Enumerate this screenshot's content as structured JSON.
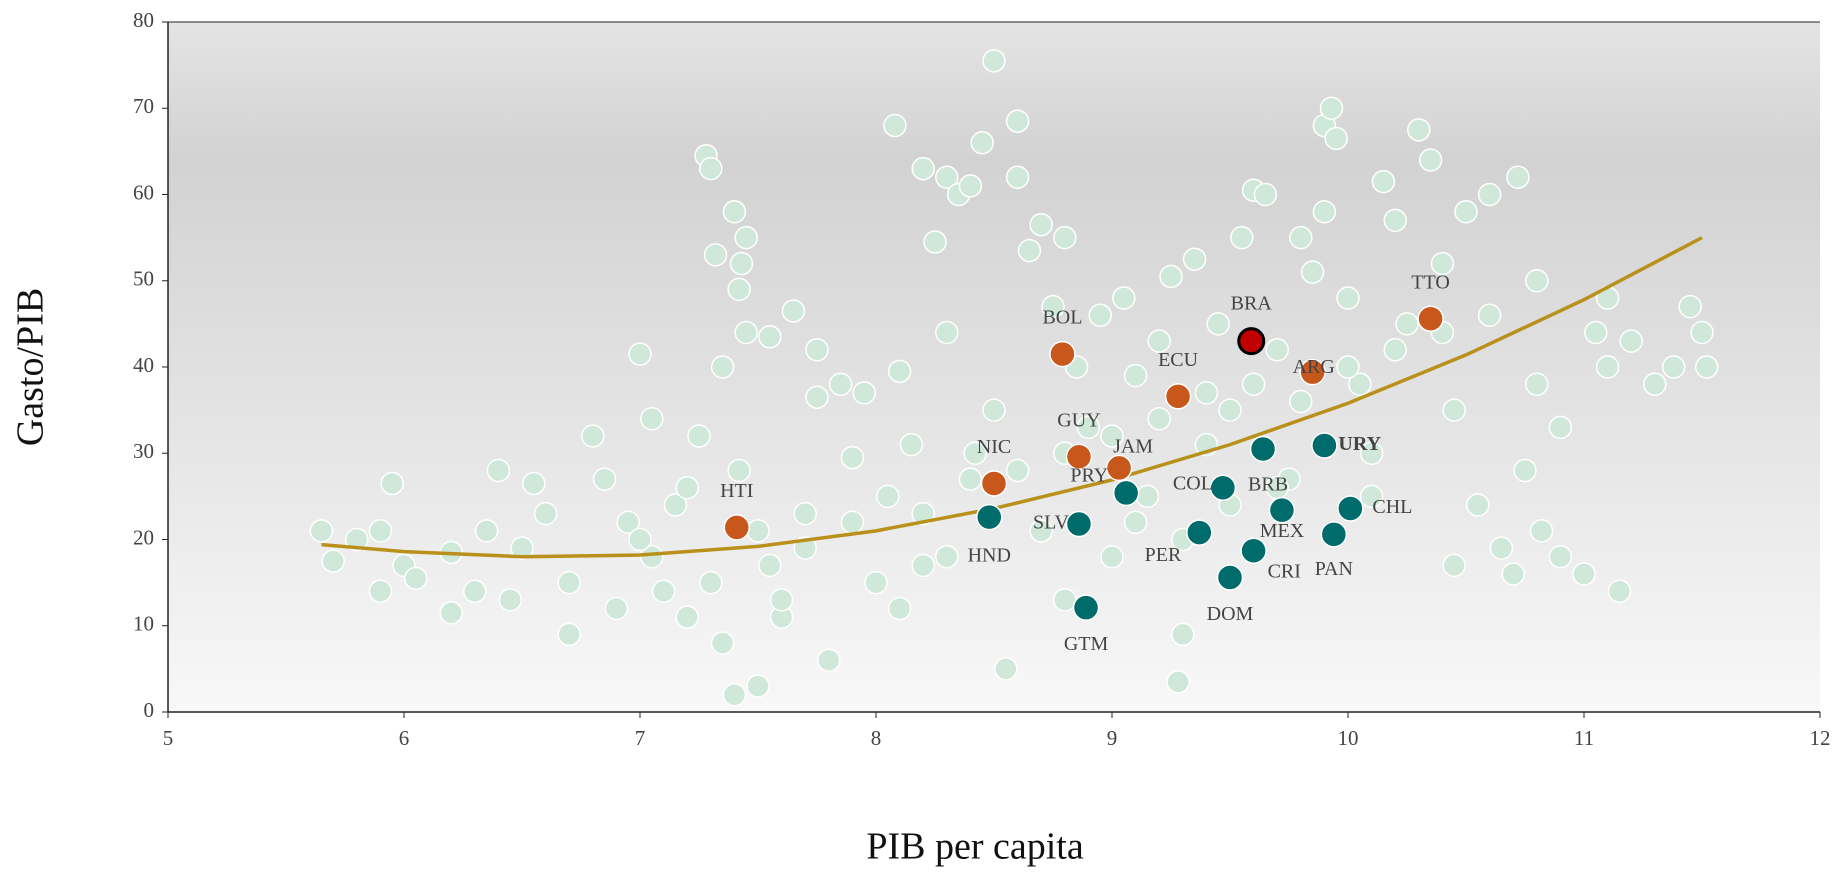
{
  "chart_data": {
    "type": "scatter",
    "xlabel": "PIB per capita",
    "ylabel": "Gasto/PIB",
    "xlim": [
      5,
      12
    ],
    "xticks": [
      5,
      6,
      7,
      8,
      9,
      10,
      11,
      12
    ],
    "ylim": [
      0,
      80
    ],
    "yticks": [
      0,
      10,
      20,
      30,
      40,
      50,
      60,
      70,
      80
    ],
    "background": {
      "color": "#cfe8da",
      "x": [
        5.65,
        5.7,
        5.8,
        5.9,
        5.95,
        5.9,
        6.0,
        6.05,
        6.2,
        6.2,
        6.3,
        6.35,
        6.4,
        6.45,
        6.5,
        6.55,
        6.6,
        6.7,
        6.7,
        6.8,
        6.85,
        6.9,
        6.95,
        7.0,
        7.05,
        7.05,
        7.1,
        7.15,
        7.2,
        7.25,
        7.28,
        7.3,
        7.32,
        7.35,
        7.35,
        7.4,
        7.42,
        7.4,
        7.42,
        7.43,
        7.45,
        7.45,
        7.5,
        7.55,
        7.55,
        7.6,
        7.65,
        7.7,
        7.75,
        7.75,
        7.8,
        7.85,
        7.9,
        7.95,
        8.0,
        8.05,
        8.08,
        8.1,
        8.15,
        8.2,
        8.2,
        8.25,
        8.3,
        8.3,
        8.35,
        8.4,
        8.42,
        8.45,
        8.5,
        8.5,
        8.55,
        8.6,
        8.6,
        8.65,
        8.7,
        8.75,
        8.8,
        8.8,
        8.85,
        8.9,
        8.95,
        9.0,
        9.05,
        9.1,
        9.15,
        9.2,
        9.25,
        9.28,
        9.3,
        9.35,
        9.4,
        9.45,
        9.5,
        9.55,
        9.6,
        9.65,
        9.7,
        9.75,
        9.8,
        9.85,
        9.9,
        9.93,
        9.95,
        9.9,
        10.0,
        10.05,
        10.1,
        10.15,
        10.2,
        10.25,
        10.3,
        10.35,
        10.4,
        10.45,
        10.45,
        10.5,
        10.55,
        10.6,
        10.65,
        10.7,
        10.72,
        10.75,
        10.8,
        10.82,
        10.9,
        10.9,
        11.0,
        11.05,
        11.1,
        11.15,
        11.1,
        11.2,
        11.3,
        11.38,
        11.45,
        11.5,
        11.52,
        7.0,
        7.2,
        7.5,
        7.7,
        7.9,
        8.2,
        8.4,
        8.6,
        8.8,
        9.0,
        9.2,
        9.4,
        9.6,
        9.8,
        10.0,
        10.2,
        10.4,
        10.6,
        10.8,
        7.3,
        7.6,
        8.1,
        8.3,
        8.7,
        9.1,
        9.3,
        9.5,
        9.7,
        10.1
      ],
      "values": [
        21,
        17.5,
        20,
        14,
        26.5,
        21,
        17,
        15.5,
        18.5,
        11.5,
        14,
        21,
        28,
        13,
        19,
        26.5,
        23,
        9,
        15,
        32,
        27,
        12,
        22,
        41.5,
        34,
        18,
        14,
        24,
        11,
        32,
        64.5,
        63,
        53,
        40,
        8,
        2,
        28,
        58,
        49,
        52,
        55,
        44,
        3,
        17,
        43.5,
        11,
        46.5,
        23,
        42,
        36.5,
        6,
        38,
        29.5,
        37,
        15,
        25,
        68,
        39.5,
        31,
        63,
        17,
        54.5,
        62,
        44,
        60,
        61,
        30,
        66,
        75.5,
        35,
        5,
        62,
        68.5,
        53.5,
        56.5,
        47,
        55,
        13,
        40,
        33,
        46,
        18,
        48,
        39,
        25,
        43,
        50.5,
        3.5,
        9,
        52.5,
        31,
        45,
        35,
        55,
        60.5,
        60,
        42,
        27,
        55,
        51,
        68,
        70,
        66.5,
        58,
        48,
        38,
        30,
        61.5,
        57,
        45,
        67.5,
        64,
        52,
        17,
        35,
        58,
        24,
        60,
        19,
        16,
        62,
        28,
        50,
        21,
        18,
        33,
        16,
        44,
        40,
        14,
        48,
        43,
        38,
        40,
        47,
        44,
        40,
        20,
        26,
        21,
        19,
        22,
        23,
        27,
        28,
        30,
        32,
        34,
        37,
        38,
        36,
        40,
        42,
        44,
        46,
        38,
        15,
        13,
        12,
        18,
        21,
        22,
        20,
        24,
        26,
        25
      ]
    },
    "highlights": [
      {
        "color": "#c8571b",
        "labels": [
          "HTI",
          "NIC",
          "BOL",
          "GUY",
          "JAM",
          "ECU",
          "ARG",
          "TTO"
        ],
        "x": [
          7.41,
          8.5,
          8.79,
          8.86,
          9.03,
          9.28,
          9.85,
          10.35
        ],
        "values": [
          21.4,
          26.5,
          41.5,
          29.6,
          28.3,
          36.6,
          39.4,
          45.6
        ]
      },
      {
        "color": "#006b6b",
        "labels": [
          "HND",
          "SLV",
          "PRY",
          "GTM",
          "COL",
          "PER",
          "DOM",
          "CRI",
          "MEX",
          "BRB",
          "URY",
          "CHL",
          "PAN"
        ],
        "x": [
          8.48,
          8.86,
          9.06,
          8.89,
          9.47,
          9.37,
          9.5,
          9.6,
          9.72,
          9.64,
          9.9,
          10.01,
          9.94
        ],
        "values": [
          22.6,
          21.8,
          25.4,
          12.1,
          26.0,
          20.8,
          15.6,
          18.7,
          23.4,
          30.5,
          30.9,
          23.6,
          20.6
        ]
      },
      {
        "color": "#c00000",
        "labels": [
          "BRA"
        ],
        "x": [
          9.59
        ],
        "values": [
          43.0
        ]
      }
    ],
    "fit": {
      "color": "#b8901a",
      "x": [
        5.65,
        6,
        6.5,
        7,
        7.5,
        8,
        8.5,
        9,
        9.5,
        10,
        10.5,
        11,
        11.5
      ],
      "values": [
        19.4,
        18.6,
        18.0,
        18.2,
        19.2,
        21.0,
        23.6,
        26.9,
        31.0,
        35.8,
        41.4,
        47.8,
        55.0
      ]
    }
  }
}
